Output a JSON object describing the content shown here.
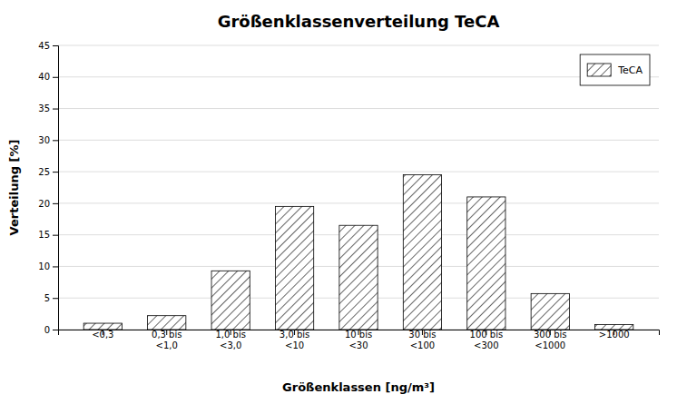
{
  "chart_data": {
    "type": "bar",
    "title": "Größenklassenverteilung TeCA",
    "xlabel": "Größenklassen [ng/m³]",
    "ylabel": "Verteilung [%]",
    "categories": [
      "<0,3",
      "0,3 bis\n<1,0",
      "1,0 bis\n<3,0",
      "3,0 bis\n<10",
      "10 bis\n<30",
      "30 bis\n<100",
      "100 bis\n<300",
      "300 bis\n<1000",
      ">1000"
    ],
    "series": [
      {
        "name": "TeCA",
        "color": "#ffffff",
        "values": [
          1.0,
          2.2,
          9.3,
          19.5,
          16.5,
          24.5,
          21.0,
          5.7,
          0.8
        ]
      }
    ],
    "ylim": [
      0,
      45
    ],
    "yticks": [
      0,
      5,
      10,
      15,
      20,
      25,
      30,
      35,
      40,
      45
    ],
    "grid": true,
    "legend": "upper right"
  }
}
